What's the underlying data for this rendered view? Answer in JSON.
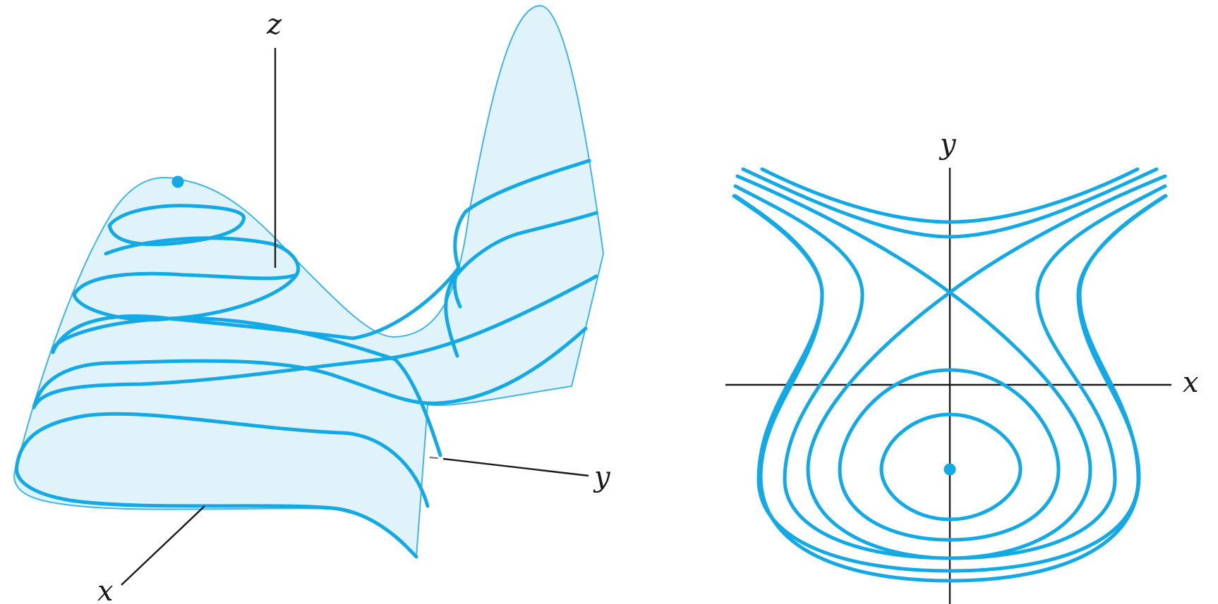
{
  "surface_plot": {
    "axis_labels": {
      "x": "x",
      "y": "y",
      "z": "z"
    },
    "colors": {
      "surface": "#e0f3fb",
      "surface_edge": "#3fb6e6",
      "level_curve": "#12a9e5",
      "axis": "#1a1a1a"
    }
  },
  "contour_plot": {
    "axis_labels": {
      "x": "x",
      "y": "y"
    },
    "colors": {
      "contour": "#12a9e5",
      "axis": "#1a1a1a"
    }
  }
}
